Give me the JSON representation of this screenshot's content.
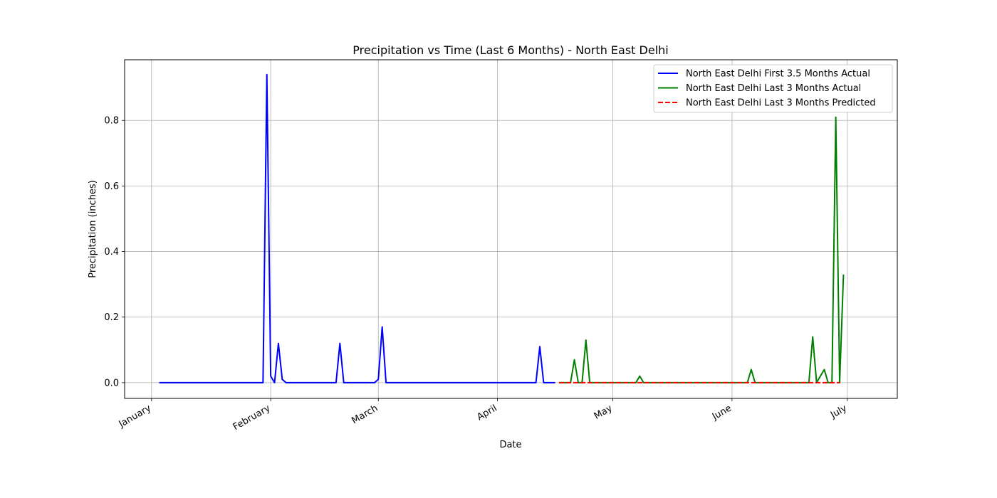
{
  "chart_data": {
    "type": "line",
    "title": "Precipitation vs Time (Last 6 Months) - North East Delhi",
    "xlabel": "Date",
    "ylabel": "Precipitation (inches)",
    "xlim": [
      "2024-12-25",
      "2025-07-14"
    ],
    "ylim": [
      -0.048,
      0.985
    ],
    "x_ticks": [
      {
        "date": "2025-01-01",
        "label": "January"
      },
      {
        "date": "2025-02-01",
        "label": "February"
      },
      {
        "date": "2025-03-01",
        "label": "March"
      },
      {
        "date": "2025-04-01",
        "label": "April"
      },
      {
        "date": "2025-05-01",
        "label": "May"
      },
      {
        "date": "2025-06-01",
        "label": "June"
      },
      {
        "date": "2025-07-01",
        "label": "July"
      }
    ],
    "y_ticks": [
      0.0,
      0.2,
      0.4,
      0.6,
      0.8
    ],
    "y_tick_labels": [
      "0.0",
      "0.2",
      "0.4",
      "0.6",
      "0.8"
    ],
    "grid": true,
    "legend_position": "top-right",
    "series": [
      {
        "name": "North East Delhi First 3.5 Months Actual",
        "color": "#0000ff",
        "style": "solid",
        "points": [
          [
            "2025-01-03",
            0
          ],
          [
            "2025-01-30",
            0
          ],
          [
            "2025-01-31",
            0.94
          ],
          [
            "2025-02-01",
            0.02
          ],
          [
            "2025-02-02",
            0
          ],
          [
            "2025-02-03",
            0.12
          ],
          [
            "2025-02-04",
            0.01
          ],
          [
            "2025-02-05",
            0
          ],
          [
            "2025-02-18",
            0
          ],
          [
            "2025-02-19",
            0.12
          ],
          [
            "2025-02-20",
            0
          ],
          [
            "2025-02-28",
            0
          ],
          [
            "2025-03-01",
            0.01
          ],
          [
            "2025-03-02",
            0.17
          ],
          [
            "2025-03-03",
            0
          ],
          [
            "2025-04-11",
            0
          ],
          [
            "2025-04-12",
            0.11
          ],
          [
            "2025-04-13",
            0
          ],
          [
            "2025-04-16",
            0
          ]
        ]
      },
      {
        "name": "North East Delhi Last 3 Months Actual",
        "color": "#008000",
        "style": "solid",
        "points": [
          [
            "2025-04-17",
            0
          ],
          [
            "2025-04-20",
            0
          ],
          [
            "2025-04-21",
            0.07
          ],
          [
            "2025-04-22",
            0
          ],
          [
            "2025-04-23",
            0
          ],
          [
            "2025-04-24",
            0.13
          ],
          [
            "2025-04-25",
            0
          ],
          [
            "2025-05-07",
            0
          ],
          [
            "2025-05-08",
            0.02
          ],
          [
            "2025-05-09",
            0
          ],
          [
            "2025-06-05",
            0
          ],
          [
            "2025-06-06",
            0.04
          ],
          [
            "2025-06-07",
            0
          ],
          [
            "2025-06-21",
            0
          ],
          [
            "2025-06-22",
            0.14
          ],
          [
            "2025-06-23",
            0
          ],
          [
            "2025-06-24",
            0.02
          ],
          [
            "2025-06-25",
            0.04
          ],
          [
            "2025-06-26",
            0
          ],
          [
            "2025-06-27",
            0
          ],
          [
            "2025-06-28",
            0.81
          ],
          [
            "2025-06-29",
            0
          ],
          [
            "2025-06-30",
            0.33
          ]
        ]
      },
      {
        "name": "North East Delhi Last 3 Months Predicted",
        "color": "#ff0000",
        "style": "dashed",
        "points": [
          [
            "2025-04-17",
            0
          ],
          [
            "2025-06-29",
            0
          ]
        ]
      }
    ]
  }
}
